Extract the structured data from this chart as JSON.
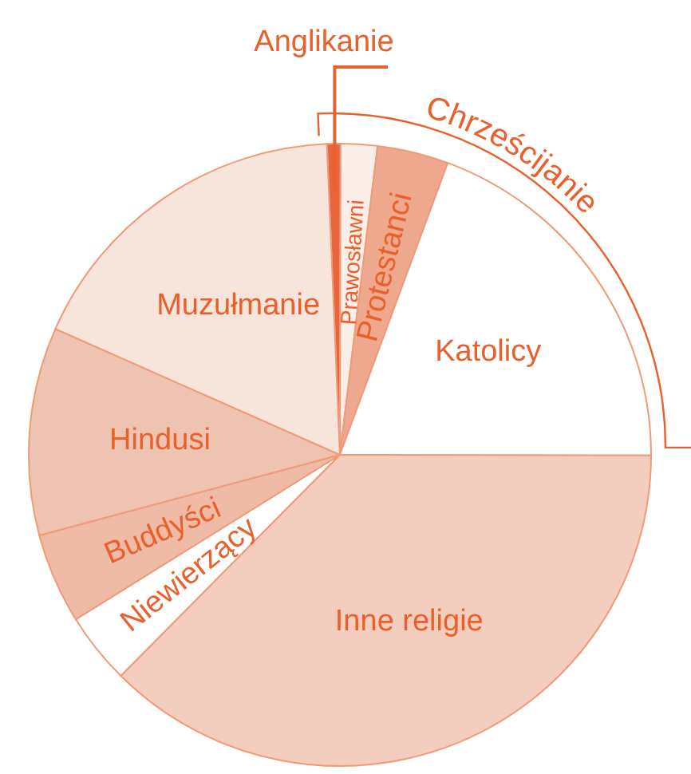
{
  "chart_data": {
    "type": "pie",
    "categories": [
      "Anglikanie",
      "Prawosławni",
      "Protestanci",
      "Katolicy",
      "Inne religie",
      "Niewierzący",
      "Buddyści",
      "Hindusi",
      "Muzułmanie"
    ],
    "values": [
      0.7,
      1.9,
      3.7,
      19.4,
      37.4,
      3.7,
      4.7,
      10.8,
      17.7
    ],
    "colors": [
      "#e8643a",
      "#fbeee8",
      "#eea88e",
      "#ffffff",
      "#f3cdbd",
      "#ffffff",
      "#f0bba6",
      "#efc3b1",
      "#f7e4db"
    ],
    "annotations": [
      "Chrześcijanie"
    ],
    "legend": false
  }
}
